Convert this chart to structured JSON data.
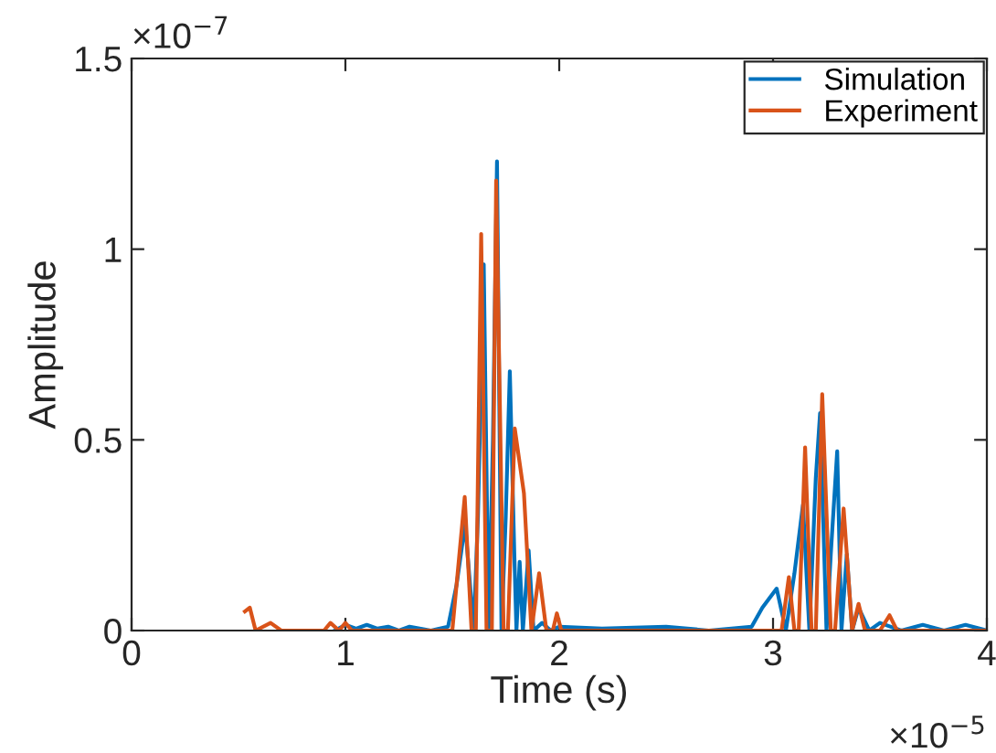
{
  "chart_data": {
    "type": "line",
    "xlabel": "Time (s)",
    "ylabel": "Amplitude",
    "xlim": [
      0,
      4
    ],
    "xticks": [
      0,
      1,
      2,
      3,
      4
    ],
    "ylim": [
      0,
      1.5
    ],
    "yticks": [
      0,
      0.5,
      1,
      1.5
    ],
    "annotations": [
      "×10$^{−5}$",
      "×10$^{−7}$"
    ],
    "grid": false,
    "legend": "top right",
    "marker": "none",
    "line_style": "solid",
    "series": [
      {
        "name": "Simulation",
        "color": "#0072bd",
        "x": [
          0.95,
          1.0,
          1.05,
          1.1,
          1.15,
          1.2,
          1.25,
          1.3,
          1.4,
          1.48,
          1.52,
          1.56,
          1.6,
          1.62,
          1.647,
          1.67,
          1.69,
          1.709,
          1.73,
          1.75,
          1.769,
          1.79,
          1.8,
          1.815,
          1.83,
          1.857,
          1.88,
          1.92,
          1.96,
          2.0,
          2.2,
          2.5,
          2.7,
          2.9,
          2.95,
          3.017,
          3.06,
          3.1,
          3.14,
          3.17,
          3.2,
          3.22,
          3.25,
          3.27,
          3.3,
          3.32,
          3.345,
          3.37,
          3.4,
          3.45,
          3.5,
          3.6,
          3.7,
          3.8,
          3.9,
          4.0
        ],
        "values": [
          0,
          0.015,
          0.005,
          0.015,
          0.005,
          0.01,
          0,
          0.01,
          0,
          0.01,
          0.12,
          0.28,
          0,
          0.3,
          0.96,
          0,
          0.5,
          1.23,
          0,
          0.3,
          0.68,
          0.2,
          0,
          0.18,
          0,
          0.21,
          0,
          0.02,
          0,
          0.01,
          0.005,
          0.01,
          0,
          0.01,
          0.06,
          0.11,
          0,
          0.15,
          0.33,
          0,
          0.4,
          0.57,
          0,
          0.2,
          0.47,
          0,
          0.2,
          0,
          0.06,
          0,
          0.02,
          0,
          0.015,
          0,
          0.015,
          0
        ]
      },
      {
        "name": "Experiment",
        "color": "#d95319",
        "x": [
          0.53,
          0.553,
          0.58,
          0.65,
          0.7,
          0.9,
          0.93,
          0.97,
          1.0,
          1.03,
          1.1,
          1.5,
          1.558,
          1.59,
          1.61,
          1.635,
          1.66,
          1.685,
          1.705,
          1.74,
          1.76,
          1.792,
          1.835,
          1.87,
          1.906,
          1.94,
          1.97,
          1.989,
          2.01,
          3.04,
          3.074,
          3.1,
          3.12,
          3.15,
          3.18,
          3.2,
          3.23,
          3.27,
          3.29,
          3.33,
          3.37,
          3.4,
          3.43,
          3.5,
          3.545,
          3.58,
          4.0
        ],
        "values": [
          0.05,
          0.06,
          0,
          0.02,
          0,
          0,
          0.02,
          0,
          0.02,
          0,
          0,
          0,
          0.35,
          0,
          0,
          1.04,
          0,
          0,
          1.18,
          0,
          0,
          0.53,
          0.36,
          0,
          0.15,
          0,
          0,
          0.045,
          0,
          0,
          0.14,
          0,
          0,
          0.48,
          0,
          0,
          0.62,
          0,
          0,
          0.32,
          0,
          0.07,
          0,
          0,
          0.04,
          0,
          0
        ]
      }
    ]
  }
}
